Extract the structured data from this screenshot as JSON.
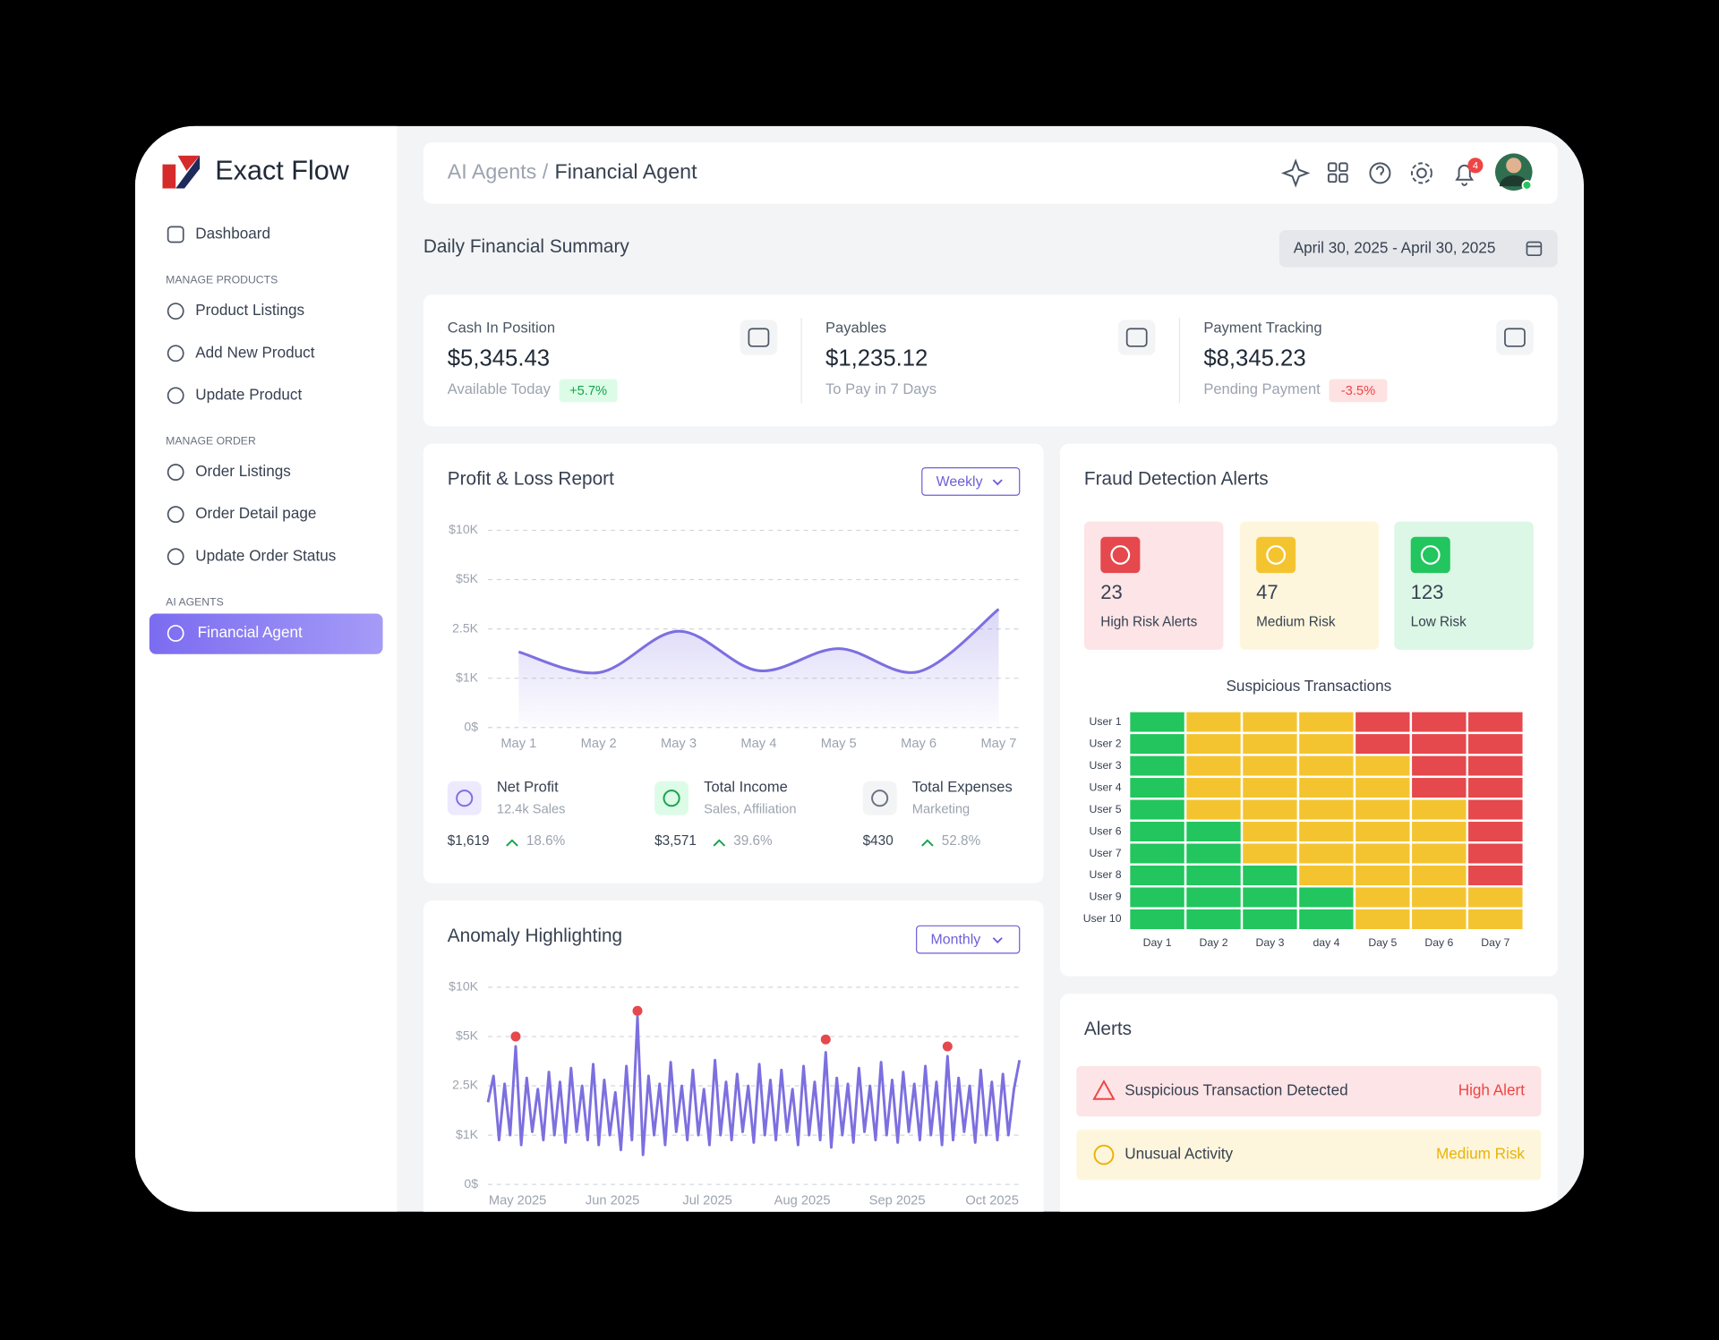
{
  "sidebar": {
    "brand": "Exact Flow",
    "top_item": "Dashboard",
    "groups": [
      {
        "heading": "MANAGE PRODUCTS",
        "items": [
          "Product Listings",
          "Add New Product",
          "Update Product"
        ]
      },
      {
        "heading": "MANAGE ORDER",
        "items": [
          "Order Listings",
          "Order Detail page",
          "Update Order Status"
        ]
      },
      {
        "heading": "AI AGENTS",
        "items": [
          "Financial Agent"
        ]
      }
    ]
  },
  "header": {
    "breadcrumb_parent": "AI Agents /",
    "breadcrumb_current": "Financial Agent",
    "notification_count": 4
  },
  "summary": {
    "title": "Daily Financial Summary",
    "date_range": "April 30, 2025 - April 30, 2025",
    "kpis": [
      {
        "label": "Cash In Position",
        "value": "$5,345.43",
        "caption": "Available Today",
        "change": "+5.7%"
      },
      {
        "label": "Payables",
        "value": "$1,235.12",
        "caption": "To Pay in 7 Days"
      },
      {
        "label": "Payment Tracking",
        "value": "$8,345.23",
        "caption": "Pending Payment",
        "change": "-3.5%"
      }
    ]
  },
  "profit_loss": {
    "title": "Profit & Loss Report",
    "period": "Weekly",
    "chart": {
      "type": "line",
      "categories": [
        "May 1",
        "May 2",
        "May 3",
        "May 4",
        "May 5",
        "May 6",
        "May 7"
      ],
      "values": [
        1800,
        1170,
        2430,
        1230,
        1900,
        1200,
        3500
      ],
      "color": "#7c6fe0",
      "ylim": [
        0,
        10000
      ],
      "yticks": [
        {
          "value": 0,
          "label": "0$"
        },
        {
          "value": 1000,
          "label": "$1K"
        },
        {
          "value": 2500,
          "label": "2.5K"
        },
        {
          "value": 5000,
          "label": "$5K"
        },
        {
          "value": 10000,
          "label": "$10K"
        }
      ],
      "grid": true
    },
    "stats": [
      {
        "name": "Net Profit",
        "caption": "12.4k Sales",
        "amount": "$1,619",
        "growth": "18.6%"
      },
      {
        "name": "Total Income",
        "caption": "Sales, Affiliation",
        "amount": "$3,571",
        "growth": "39.6%"
      },
      {
        "name": "Total Expenses",
        "caption": "Marketing",
        "amount": "$430",
        "growth": "52.8%"
      }
    ]
  },
  "anomaly": {
    "title": "Anomaly Highlighting",
    "period": "Monthly",
    "chart": {
      "type": "line",
      "x_labels": [
        "May 2025",
        "Jun 2025",
        "Jul 2025",
        "Aug 2025",
        "Sep 2025",
        "Oct 2025"
      ],
      "values": [
        2000,
        3000,
        900,
        2600,
        1000,
        4500,
        800,
        2900,
        1100,
        2400,
        900,
        3200,
        1000,
        2700,
        850,
        3400,
        1100,
        2500,
        900,
        3600,
        800,
        2800,
        1000,
        2300,
        700,
        3500,
        900,
        7000,
        600,
        3000,
        1000,
        2600,
        800,
        3700,
        1100,
        2500,
        900,
        3300,
        1000,
        2400,
        800,
        3800,
        1000,
        2700,
        900,
        3100,
        1100,
        2500,
        850,
        3600,
        1000,
        2800,
        900,
        3300,
        1100,
        2400,
        800,
        3500,
        1000,
        2700,
        900,
        4200,
        750,
        2900,
        1000,
        2600,
        850,
        3400,
        1100,
        2500,
        900,
        3700,
        1000,
        2800,
        850,
        3200,
        1100,
        2600,
        900,
        3500,
        1000,
        2700,
        800,
        4000,
        900,
        2900,
        1100,
        2500,
        850,
        3300,
        1000,
        2700,
        900,
        3100,
        1000,
        2400,
        3800
      ],
      "anomalies": [
        null,
        null,
        null,
        null,
        null,
        5000,
        null,
        null,
        null,
        null,
        null,
        null,
        null,
        null,
        null,
        null,
        null,
        null,
        null,
        null,
        null,
        null,
        null,
        null,
        null,
        null,
        null,
        7600,
        null,
        null,
        null,
        null,
        null,
        null,
        null,
        null,
        null,
        null,
        null,
        null,
        null,
        null,
        null,
        null,
        null,
        null,
        null,
        null,
        null,
        null,
        null,
        null,
        null,
        null,
        null,
        null,
        null,
        null,
        null,
        null,
        null,
        4850,
        null,
        null,
        null,
        null,
        null,
        null,
        null,
        null,
        null,
        null,
        null,
        null,
        null,
        null,
        null,
        null,
        null,
        null,
        null,
        null,
        null,
        4500,
        null,
        null,
        null,
        null,
        null,
        null,
        null,
        null,
        null,
        null,
        null,
        null,
        null
      ],
      "color": "#7c6fe0",
      "anomaly_color": "#e5484d",
      "ylim": [
        0,
        10000
      ],
      "yticks": [
        {
          "value": 0,
          "label": "0$"
        },
        {
          "value": 1000,
          "label": "$1K"
        },
        {
          "value": 2500,
          "label": "2.5K"
        },
        {
          "value": 5000,
          "label": "$5K"
        },
        {
          "value": 10000,
          "label": "$10K"
        }
      ],
      "grid": true
    }
  },
  "fraud": {
    "title": "Fraud Detection Alerts",
    "summary": [
      {
        "count": 23,
        "label": "High Risk Alerts"
      },
      {
        "count": 47,
        "label": "Medium Risk"
      },
      {
        "count": 123,
        "label": "Low Risk"
      }
    ],
    "heatmap": {
      "title": "Suspicious Transactions",
      "rows": [
        "User 1",
        "User 2",
        "User 3",
        "User 4",
        "User 5",
        "User 6",
        "User 7",
        "User 8",
        "User 9",
        "User 10"
      ],
      "columns": [
        "Day 1",
        "Day 2",
        "Day 3",
        "day 4",
        "Day 5",
        "Day 6",
        "Day 7"
      ],
      "colors": {
        "low": "#22c55e",
        "medium": "#f4c430",
        "high": "#e5484d"
      },
      "cells": [
        [
          "low",
          "medium",
          "medium",
          "medium",
          "high",
          "high",
          "high"
        ],
        [
          "low",
          "medium",
          "medium",
          "medium",
          "high",
          "high",
          "high"
        ],
        [
          "low",
          "medium",
          "medium",
          "medium",
          "medium",
          "high",
          "high"
        ],
        [
          "low",
          "medium",
          "medium",
          "medium",
          "medium",
          "high",
          "high"
        ],
        [
          "low",
          "medium",
          "medium",
          "medium",
          "medium",
          "medium",
          "high"
        ],
        [
          "low",
          "low",
          "medium",
          "medium",
          "medium",
          "medium",
          "high"
        ],
        [
          "low",
          "low",
          "medium",
          "medium",
          "medium",
          "medium",
          "high"
        ],
        [
          "low",
          "low",
          "low",
          "medium",
          "medium",
          "medium",
          "high"
        ],
        [
          "low",
          "low",
          "low",
          "low",
          "medium",
          "medium",
          "medium"
        ],
        [
          "low",
          "low",
          "low",
          "low",
          "medium",
          "medium",
          "medium"
        ]
      ]
    }
  },
  "alerts": {
    "title": "Alerts",
    "items": [
      {
        "message": "Suspicious Transaction Detected",
        "level": "High Alert"
      },
      {
        "message": "Unusual Activity",
        "level": "Medium Risk"
      }
    ]
  }
}
